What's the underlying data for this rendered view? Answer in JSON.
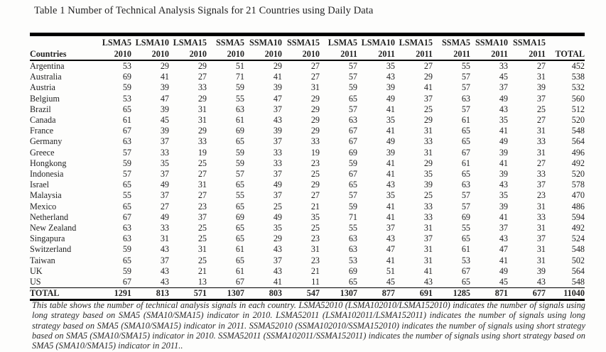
{
  "title": "Table 1 Number of Technical Analysis Signals for 21 Countries using Daily Data",
  "table": {
    "header": {
      "countries_label": "Countries",
      "total_label": "TOTAL",
      "columns": [
        {
          "series": "LSMA5",
          "year": "2010"
        },
        {
          "series": "LSMA10",
          "year": "2010"
        },
        {
          "series": "LSMA15",
          "year": "2010"
        },
        {
          "series": "SSMA5",
          "year": "2010"
        },
        {
          "series": "SSMA10",
          "year": "2010"
        },
        {
          "series": "SSMA15",
          "year": "2010"
        },
        {
          "series": "LSMA5",
          "year": "2011"
        },
        {
          "series": "LSMA10",
          "year": "2011"
        },
        {
          "series": "LSMA15",
          "year": "2011"
        },
        {
          "series": "SSMA5",
          "year": "2011"
        },
        {
          "series": "SSMA10",
          "year": "2011"
        },
        {
          "series": "SSMA15",
          "year": "2011"
        }
      ]
    },
    "rows": [
      {
        "country": "Argentina",
        "values": [
          53,
          29,
          29,
          51,
          29,
          27,
          57,
          35,
          27,
          55,
          33,
          27
        ],
        "total": 452
      },
      {
        "country": "Australia",
        "values": [
          69,
          41,
          27,
          71,
          41,
          27,
          57,
          43,
          29,
          57,
          45,
          31
        ],
        "total": 538
      },
      {
        "country": "Austria",
        "values": [
          59,
          39,
          33,
          59,
          39,
          31,
          59,
          39,
          41,
          57,
          37,
          39
        ],
        "total": 532
      },
      {
        "country": "Belgium",
        "values": [
          53,
          47,
          29,
          55,
          47,
          29,
          65,
          49,
          37,
          63,
          49,
          37
        ],
        "total": 560
      },
      {
        "country": "Brazil",
        "values": [
          65,
          39,
          31,
          63,
          37,
          29,
          57,
          41,
          25,
          57,
          43,
          25
        ],
        "total": 512
      },
      {
        "country": "Canada",
        "values": [
          61,
          45,
          31,
          61,
          43,
          29,
          63,
          35,
          29,
          61,
          35,
          27
        ],
        "total": 520
      },
      {
        "country": "France",
        "values": [
          67,
          39,
          29,
          69,
          39,
          29,
          67,
          41,
          31,
          65,
          41,
          31
        ],
        "total": 548
      },
      {
        "country": "Germany",
        "values": [
          63,
          37,
          33,
          65,
          37,
          33,
          67,
          49,
          33,
          65,
          49,
          33
        ],
        "total": 564
      },
      {
        "country": "Greece",
        "values": [
          57,
          33,
          19,
          59,
          33,
          19,
          69,
          39,
          31,
          67,
          39,
          31
        ],
        "total": 496
      },
      {
        "country": "Hongkong",
        "values": [
          59,
          35,
          25,
          59,
          33,
          23,
          59,
          41,
          29,
          61,
          41,
          27
        ],
        "total": 492
      },
      {
        "country": "Indonesia",
        "values": [
          57,
          37,
          27,
          57,
          37,
          25,
          67,
          41,
          35,
          65,
          39,
          33
        ],
        "total": 520
      },
      {
        "country": "Israel",
        "values": [
          65,
          49,
          31,
          65,
          49,
          29,
          65,
          43,
          39,
          63,
          43,
          37
        ],
        "total": 578
      },
      {
        "country": "Malaysia",
        "values": [
          55,
          37,
          27,
          55,
          37,
          27,
          57,
          35,
          25,
          57,
          35,
          23
        ],
        "total": 470
      },
      {
        "country": "Mexico",
        "values": [
          65,
          27,
          23,
          65,
          25,
          21,
          59,
          41,
          33,
          57,
          39,
          31
        ],
        "total": 486
      },
      {
        "country": "Netherland",
        "values": [
          67,
          49,
          37,
          69,
          49,
          35,
          71,
          41,
          33,
          69,
          41,
          33
        ],
        "total": 594
      },
      {
        "country": "New Zealand",
        "values": [
          63,
          33,
          25,
          65,
          35,
          25,
          55,
          37,
          31,
          55,
          37,
          31
        ],
        "total": 492
      },
      {
        "country": "Singapura",
        "values": [
          63,
          31,
          25,
          65,
          29,
          23,
          63,
          43,
          37,
          65,
          43,
          37
        ],
        "total": 524
      },
      {
        "country": "Switzerland",
        "values": [
          59,
          43,
          31,
          61,
          43,
          31,
          63,
          47,
          31,
          61,
          47,
          31
        ],
        "total": 548
      },
      {
        "country": "Taiwan",
        "values": [
          65,
          37,
          25,
          65,
          37,
          23,
          53,
          41,
          31,
          53,
          41,
          31
        ],
        "total": 502
      },
      {
        "country": "UK",
        "values": [
          59,
          43,
          21,
          61,
          43,
          21,
          69,
          51,
          41,
          67,
          49,
          39
        ],
        "total": 564
      },
      {
        "country": "US",
        "values": [
          67,
          43,
          13,
          67,
          41,
          11,
          65,
          45,
          43,
          65,
          45,
          43
        ],
        "total": 548
      }
    ],
    "total_row": {
      "label": "TOTAL",
      "values": [
        1291,
        813,
        571,
        1307,
        803,
        547,
        1307,
        877,
        691,
        1285,
        871,
        677
      ],
      "total": 11040
    }
  },
  "footnote": "This table shows the number of technical analysis signals in each country. LSMA52010 (LSMA102010/LSMA152010) indicates the number of signals using long strategy based on SMA5 (SMA10/SMA15) indicator in 2010. LSMA52011 (LSMA102011/LSMA152011) indicates the number of signals using long strategy based on SMA5 (SMA10/SMA15) indicator in 2011. SSMA52010 (SSMA102010/SSMA152010) indicates the number of signals using short strategy based on SMA5 (SMA10/SMA15) indicator in 2010. SSMA52011 (SSMA102011/SSMA152011) indicates the number of signals using short strategy based on SMA5 (SMA10/SMA15) indicator in 2011.."
}
